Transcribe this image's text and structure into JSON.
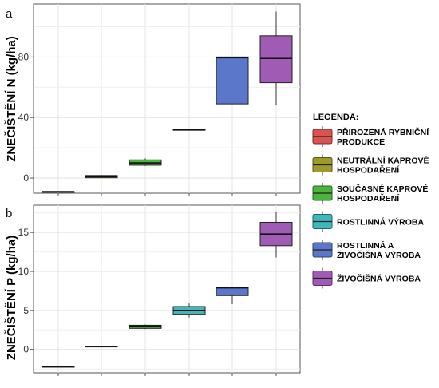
{
  "chart_data": [
    {
      "type": "box",
      "panel": "a",
      "title": "",
      "xlabel": "",
      "ylabel": "ZNEČIŠTĚNÍ N (kg/ha)",
      "yticks": [
        0,
        40,
        80
      ],
      "ylim": [
        -10,
        115
      ],
      "grid": true,
      "boxes": [
        {
          "series": "PŘIROZENÁ RYBNIČNÍ PRODUKCE",
          "min": -9,
          "q1": -9,
          "median": -9,
          "q3": -9,
          "max": -9
        },
        {
          "series": "NEUTRÁLNÍ KAPROVÉ HOSPODAŘENÍ",
          "min": 0,
          "q1": 0.2,
          "median": 1,
          "q3": 1.7,
          "max": 2
        },
        {
          "series": "SOUČASNÉ KAPROVÉ HOSPODAŘENÍ",
          "min": 8,
          "q1": 8.5,
          "median": 10,
          "q3": 12,
          "max": 13
        },
        {
          "series": "ROSTLINNÁ VÝROBA",
          "min": 32,
          "q1": 32,
          "median": 32,
          "q3": 32,
          "max": 32
        },
        {
          "series": "ROSTLINNÁ A ŽIVOČIŠNÁ VÝROBA",
          "min": 49,
          "q1": 49,
          "median": 79.5,
          "q3": 80,
          "max": 80
        },
        {
          "series": "ŽIVOČIŠNÁ VÝROBA",
          "min": 48,
          "q1": 63,
          "median": 79,
          "q3": 94,
          "max": 110
        }
      ]
    },
    {
      "type": "box",
      "panel": "b",
      "title": "",
      "xlabel": "",
      "ylabel": "ZNEČIŠTĚNÍ P (kg/ha)",
      "yticks": [
        0,
        5,
        10,
        15
      ],
      "ylim": [
        -3,
        18.5
      ],
      "grid": true,
      "boxes": [
        {
          "series": "PŘIROZENÁ RYBNIČNÍ PRODUKCE",
          "min": -2.2,
          "q1": -2.2,
          "median": -2.2,
          "q3": -2.2,
          "max": -2.2
        },
        {
          "series": "NEUTRÁLNÍ KAPROVÉ HOSPODAŘENÍ",
          "min": 0.4,
          "q1": 0.4,
          "median": 0.4,
          "q3": 0.4,
          "max": 0.4
        },
        {
          "series": "SOUČASNÉ KAPROVÉ HOSPODAŘENÍ",
          "min": 2.6,
          "q1": 2.7,
          "median": 3.0,
          "q3": 3.1,
          "max": 3.2
        },
        {
          "series": "ROSTLINNÁ VÝROBA",
          "min": 4.1,
          "q1": 4.5,
          "median": 5.0,
          "q3": 5.5,
          "max": 5.9
        },
        {
          "series": "ROSTLINNÁ A ŽIVOČIŠNÁ VÝROBA",
          "min": 5.8,
          "q1": 6.9,
          "median": 7.9,
          "q3": 8.0,
          "max": 8.0
        },
        {
          "series": "ŽIVOČIŠNÁ VÝROBA",
          "min": 11.8,
          "q1": 13.3,
          "median": 14.8,
          "q3": 16.3,
          "max": 17.6
        }
      ]
    }
  ],
  "legend": {
    "title": "LEGENDA:",
    "placement": "right",
    "items": [
      {
        "lines": [
          "PŘIROZENÁ RYBNIČNÍ",
          "PRODUKCE"
        ],
        "color": "#d9534f"
      },
      {
        "lines": [
          "NEUTRÁLNÍ KAPROVÉ",
          "HOSPODAŘENÍ"
        ],
        "color": "#9e9a2b"
      },
      {
        "lines": [
          "SOUČASNÉ KAPROVÉ",
          "HOSPODAŘENÍ"
        ],
        "color": "#49b53a"
      },
      {
        "lines": [
          "ROSTLINNÁ VÝROBA"
        ],
        "color": "#3fb7bd"
      },
      {
        "lines": [
          "ROSTLINNÁ A",
          "ŽIVOČIŠNÁ VÝROBA"
        ],
        "color": "#5b77c9"
      },
      {
        "lines": [
          "ŽIVOČIŠNÁ VÝROBA"
        ],
        "color": "#a05bb5"
      }
    ]
  }
}
